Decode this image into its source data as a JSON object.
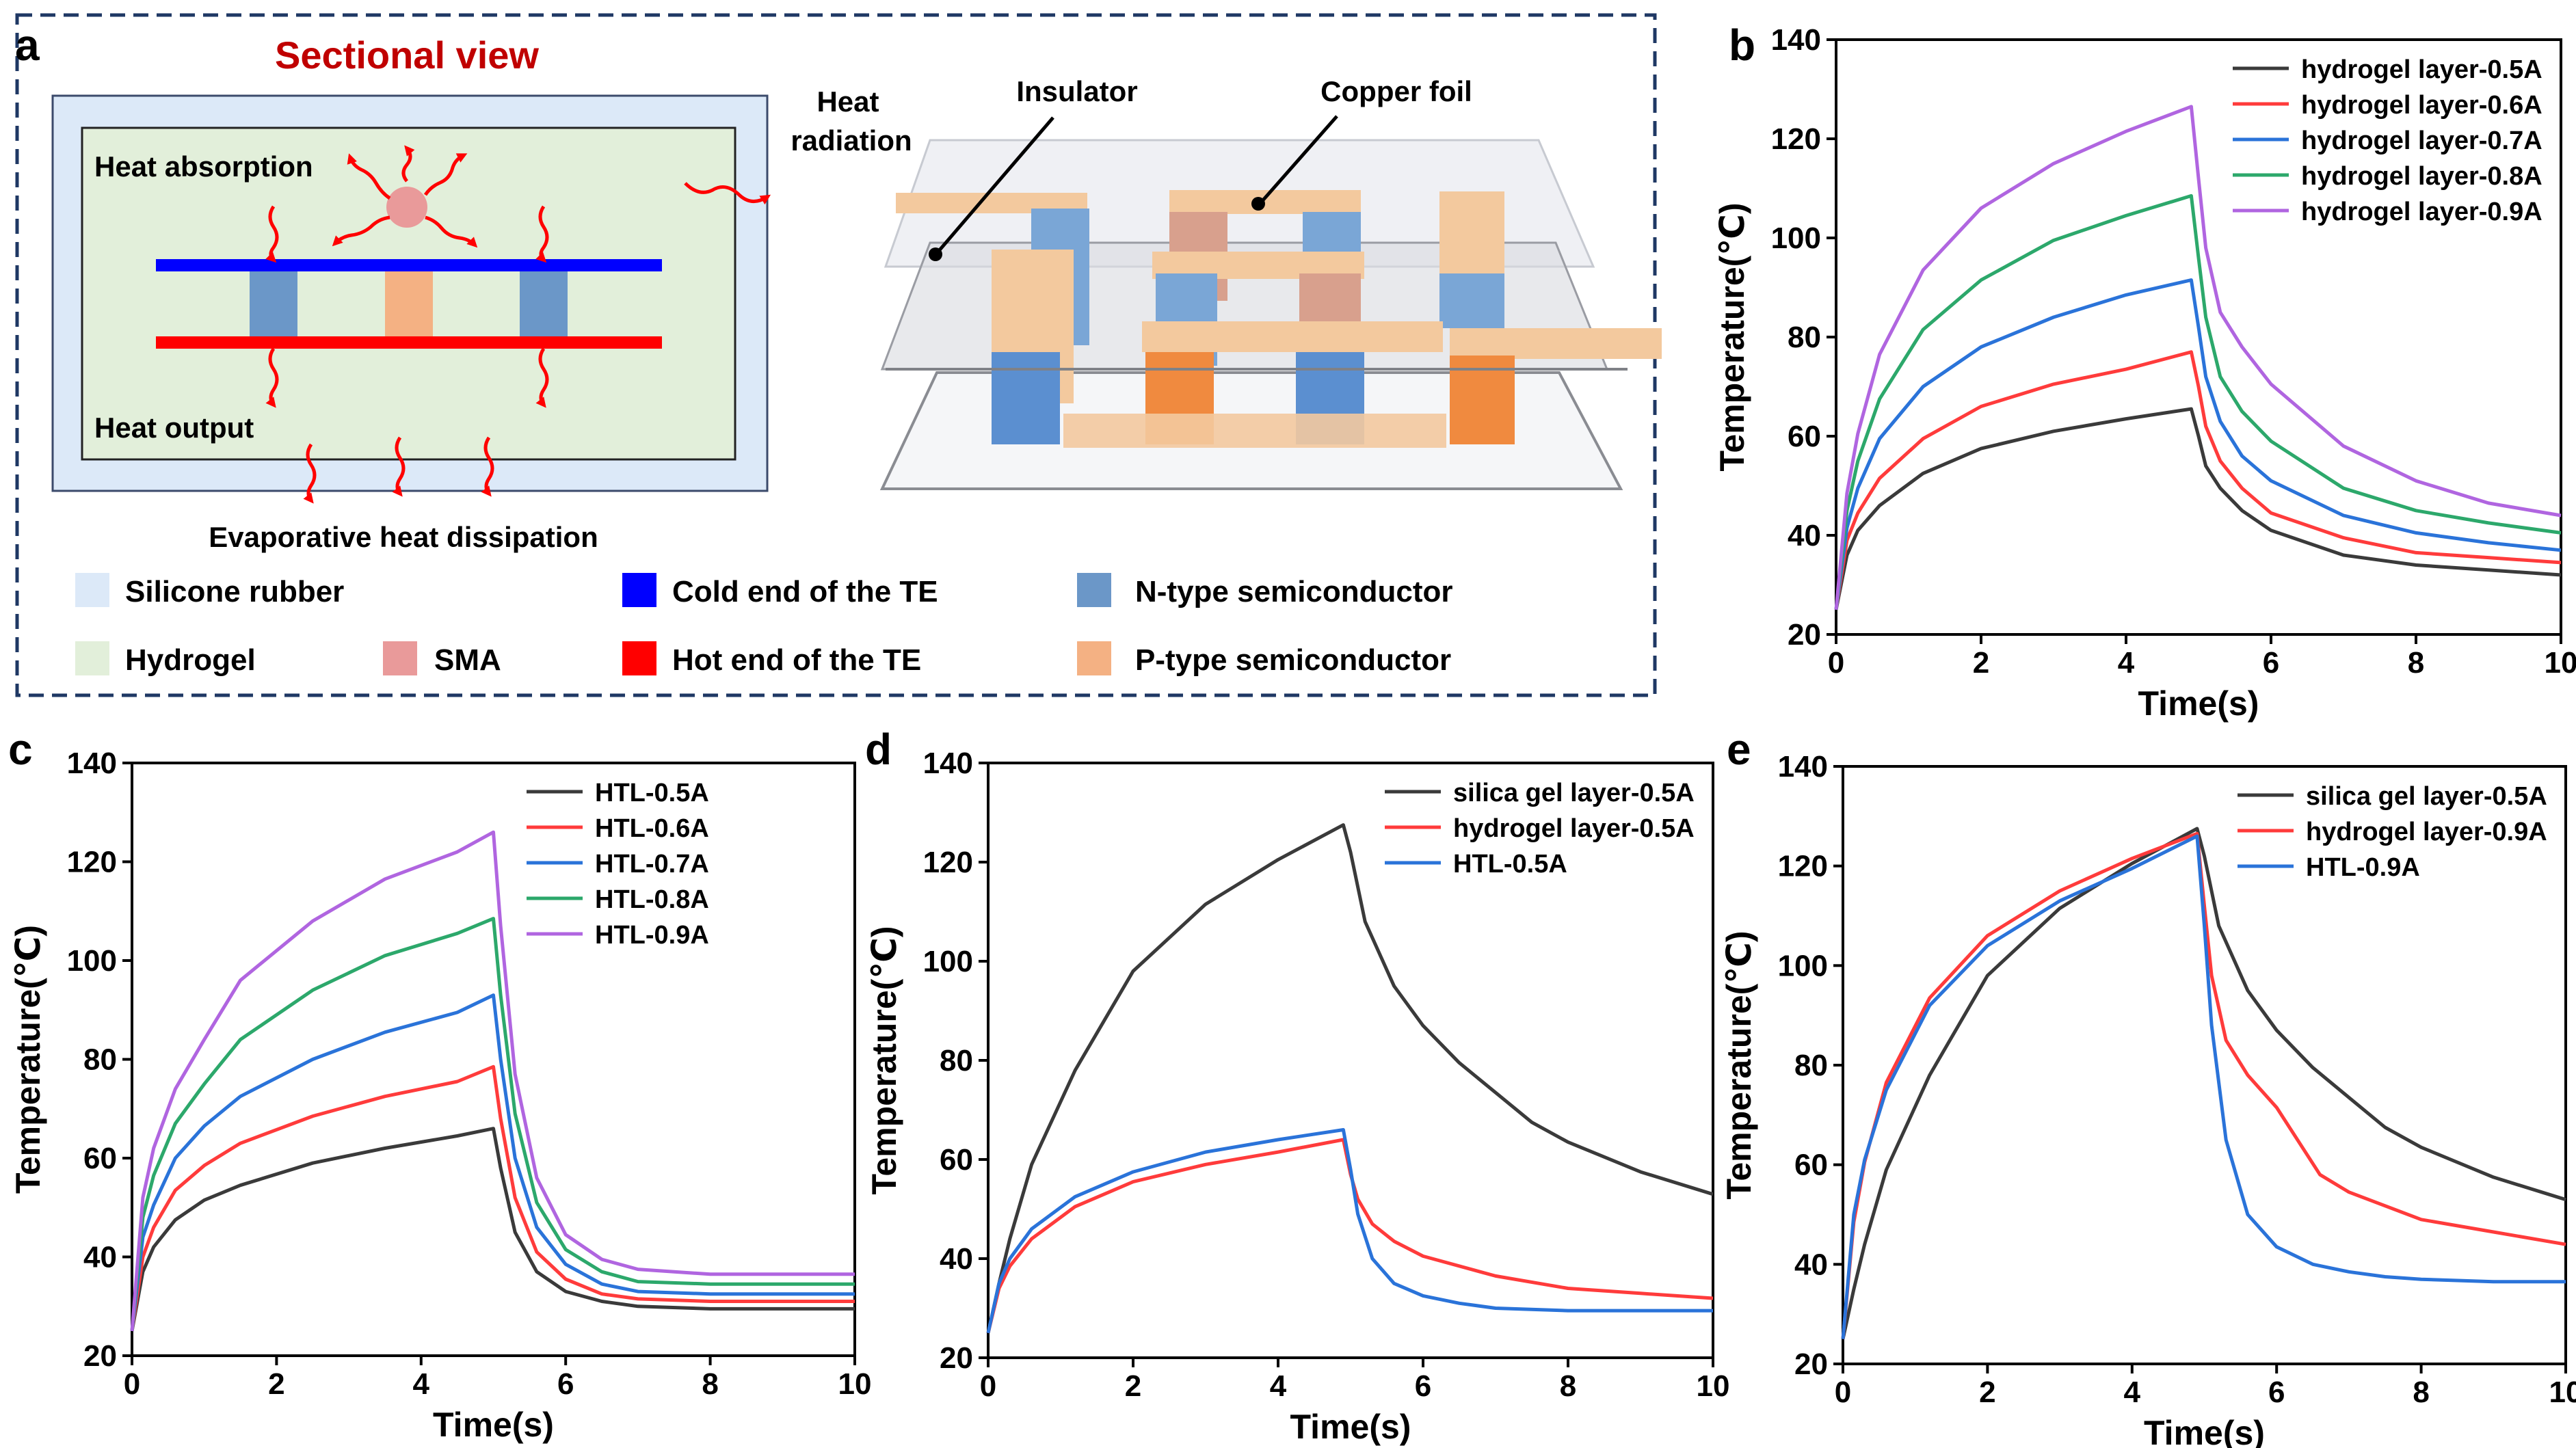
{
  "panel_a": {
    "letter": "a",
    "title": "Sectional view",
    "label_heat_absorption": "Heat absorption",
    "label_heat_output": "Heat output",
    "label_heat_radiation_1": "Heat",
    "label_heat_radiation_2": "radiation",
    "label_evaporative": "Evaporative heat dissipation",
    "label_insulator": "Insulator",
    "label_copper_foil": "Copper foil",
    "legend": [
      {
        "label": "Silicone rubber",
        "color": "#dce9f8"
      },
      {
        "label": "Hydrogel",
        "color": "#e2efda"
      },
      {
        "label": "SMA",
        "color": "#e99a9a"
      },
      {
        "label": "Cold end of the TE",
        "color": "#0000ff"
      },
      {
        "label": "Hot end of the TE",
        "color": "#ff0000"
      },
      {
        "label": "N-type semiconductor",
        "color": "#6b97c8"
      },
      {
        "label": "P-type semiconductor",
        "color": "#f4b183"
      }
    ]
  },
  "chart_data": [
    {
      "panel": "b",
      "type": "line",
      "xlabel": "Time(s)",
      "ylabel": "Temperature(℃)",
      "xlim": [
        0,
        10
      ],
      "ylim": [
        20,
        140
      ],
      "xticks": [
        "0",
        "2",
        "4",
        "6",
        "8",
        "10"
      ],
      "yticks": [
        "20",
        "40",
        "60",
        "80",
        "100",
        "120",
        "140"
      ],
      "legend_position": "top-right",
      "series": [
        {
          "name": "hydrogel layer-0.5A",
          "color": "#3a3a3a",
          "x": [
            0,
            0.15,
            0.3,
            0.6,
            1.2,
            2,
            3,
            4,
            4.9,
            5,
            5.1,
            5.3,
            5.6,
            6,
            7,
            8,
            9,
            10
          ],
          "y": [
            25,
            36,
            41,
            46,
            52.5,
            57.5,
            61,
            63.5,
            65.5,
            60,
            54,
            49.5,
            45,
            41,
            36,
            34,
            33,
            32
          ]
        },
        {
          "name": "hydrogel layer-0.6A",
          "color": "#ff3b3b",
          "x": [
            0,
            0.15,
            0.3,
            0.6,
            1.2,
            2,
            3,
            4,
            4.9,
            5,
            5.1,
            5.3,
            5.6,
            6,
            7,
            8,
            9,
            10
          ],
          "y": [
            25,
            39,
            44.5,
            51.5,
            59.5,
            66,
            70.5,
            73.5,
            77,
            70,
            62,
            55,
            49.5,
            44.5,
            39.5,
            36.5,
            35.5,
            34.5
          ]
        },
        {
          "name": "hydrogel layer-0.7A",
          "color": "#2a73d9",
          "x": [
            0,
            0.15,
            0.3,
            0.6,
            1.2,
            2,
            3,
            4,
            4.9,
            5,
            5.1,
            5.3,
            5.6,
            6,
            7,
            8,
            9,
            10
          ],
          "y": [
            25,
            41.5,
            49.5,
            59.5,
            70,
            78,
            84,
            88.5,
            91.5,
            82,
            72,
            63,
            56,
            51,
            44,
            40.5,
            38.5,
            37
          ]
        },
        {
          "name": "hydrogel layer-0.8A",
          "color": "#2ca86b",
          "x": [
            0,
            0.15,
            0.3,
            0.6,
            1.2,
            2,
            3,
            4,
            4.9,
            5,
            5.1,
            5.3,
            5.6,
            6,
            7,
            8,
            9,
            10
          ],
          "y": [
            25,
            45,
            55,
            67.5,
            81.5,
            91.5,
            99.5,
            104.5,
            108.5,
            96,
            84,
            72,
            65,
            59,
            49.5,
            45,
            42.5,
            40.5
          ]
        },
        {
          "name": "hydrogel layer-0.9A",
          "color": "#b065e0",
          "x": [
            0,
            0.15,
            0.3,
            0.6,
            1.2,
            2,
            3,
            4,
            4.9,
            5,
            5.1,
            5.3,
            5.6,
            6,
            7,
            8,
            9,
            10
          ],
          "y": [
            25,
            48.5,
            60.5,
            76.5,
            93.5,
            106,
            115,
            121.5,
            126.5,
            112,
            98,
            85,
            78,
            70.5,
            58,
            51,
            46.5,
            44
          ]
        }
      ]
    },
    {
      "panel": "c",
      "type": "line",
      "xlabel": "Time(s)",
      "ylabel": "Temperature(℃)",
      "xlim": [
        0,
        10
      ],
      "ylim": [
        20,
        140
      ],
      "xticks": [
        "0",
        "2",
        "4",
        "6",
        "8",
        "10"
      ],
      "yticks": [
        "20",
        "40",
        "60",
        "80",
        "100",
        "120",
        "140"
      ],
      "legend_position": "top-right",
      "series": [
        {
          "name": "HTL-0.5A",
          "color": "#3a3a3a",
          "x": [
            0,
            0.15,
            0.3,
            0.6,
            1,
            1.5,
            2.5,
            3.5,
            4.5,
            5,
            5.1,
            5.3,
            5.6,
            6,
            6.5,
            7,
            8,
            9,
            10
          ],
          "y": [
            25,
            37,
            42,
            47.5,
            51.5,
            54.5,
            59,
            62,
            64.5,
            66,
            58,
            45,
            37,
            33,
            31,
            30,
            29.5,
            29.5,
            29.5
          ]
        },
        {
          "name": "HTL-0.6A",
          "color": "#ff3b3b",
          "x": [
            0,
            0.15,
            0.3,
            0.6,
            1,
            1.5,
            2.5,
            3.5,
            4.5,
            5,
            5.1,
            5.3,
            5.6,
            6,
            6.5,
            7,
            8,
            9,
            10
          ],
          "y": [
            25,
            40,
            46,
            53.5,
            58.5,
            63,
            68.5,
            72.5,
            75.5,
            78.5,
            68,
            52,
            41,
            35.5,
            32.5,
            31.5,
            31,
            31,
            31
          ]
        },
        {
          "name": "HTL-0.7A",
          "color": "#2a73d9",
          "x": [
            0,
            0.15,
            0.3,
            0.6,
            1,
            1.5,
            2.5,
            3.5,
            4.5,
            5,
            5.1,
            5.3,
            5.6,
            6,
            6.5,
            7,
            8,
            9,
            10
          ],
          "y": [
            25,
            44,
            50.5,
            60,
            66.5,
            72.5,
            80,
            85.5,
            89.5,
            93,
            80,
            60,
            46,
            38.5,
            34.5,
            33,
            32.5,
            32.5,
            32.5
          ]
        },
        {
          "name": "HTL-0.8A",
          "color": "#2ca86b",
          "x": [
            0,
            0.15,
            0.3,
            0.6,
            1,
            1.5,
            2.5,
            3.5,
            4.5,
            5,
            5.1,
            5.3,
            5.6,
            6,
            6.5,
            7,
            8,
            9,
            10
          ],
          "y": [
            25,
            48,
            56.5,
            67,
            75,
            84,
            94,
            101,
            105.5,
            108.5,
            93,
            69,
            51,
            41.5,
            37,
            35,
            34.5,
            34.5,
            34.5
          ]
        },
        {
          "name": "HTL-0.9A",
          "color": "#b065e0",
          "x": [
            0,
            0.15,
            0.3,
            0.6,
            1,
            1.5,
            2.5,
            3.5,
            4.5,
            5,
            5.1,
            5.3,
            5.6,
            6,
            6.5,
            7,
            8,
            9,
            10
          ],
          "y": [
            25,
            52,
            62,
            74,
            84,
            96,
            108,
            116.5,
            122,
            126,
            107,
            77,
            56,
            44.5,
            39.5,
            37.5,
            36.5,
            36.5,
            36.5
          ]
        }
      ]
    },
    {
      "panel": "d",
      "type": "line",
      "xlabel": "Time(s)",
      "ylabel": "Temperature(℃)",
      "xlim": [
        0,
        10
      ],
      "ylim": [
        20,
        140
      ],
      "xticks": [
        "0",
        "2",
        "4",
        "6",
        "8",
        "10"
      ],
      "yticks": [
        "20",
        "40",
        "60",
        "80",
        "100",
        "120",
        "140"
      ],
      "legend_position": "top-right",
      "series": [
        {
          "name": "silica gel layer-0.5A",
          "color": "#3a3a3a",
          "x": [
            0,
            0.15,
            0.3,
            0.6,
            1.2,
            2,
            3,
            4,
            4.9,
            5,
            5.2,
            5.6,
            6,
            6.5,
            7,
            7.5,
            8,
            9,
            10
          ],
          "y": [
            25,
            35,
            44,
            59,
            78,
            98,
            111.5,
            120.5,
            127.5,
            122,
            108,
            95,
            87,
            79.5,
            73.5,
            67.5,
            63.5,
            57.5,
            53
          ]
        },
        {
          "name": "hydrogel layer-0.5A",
          "color": "#ff3b3b",
          "x": [
            0,
            0.15,
            0.3,
            0.6,
            1.2,
            2,
            3,
            4,
            4.9,
            5,
            5.1,
            5.3,
            5.6,
            6,
            7,
            8,
            9,
            10
          ],
          "y": [
            25,
            34,
            38.5,
            44,
            50.5,
            55.5,
            59,
            61.5,
            64,
            57,
            52,
            47,
            43.5,
            40.5,
            36.5,
            34,
            33,
            32
          ]
        },
        {
          "name": "HTL-0.5A",
          "color": "#2a73d9",
          "x": [
            0,
            0.15,
            0.3,
            0.6,
            1.2,
            2,
            3,
            4,
            4.9,
            5,
            5.1,
            5.3,
            5.6,
            6,
            6.5,
            7,
            8,
            9,
            10
          ],
          "y": [
            25,
            35,
            40,
            46,
            52.5,
            57.5,
            61.5,
            64,
            66,
            58,
            49,
            40,
            35,
            32.5,
            31,
            30,
            29.5,
            29.5,
            29.5
          ]
        }
      ]
    },
    {
      "panel": "e",
      "type": "line",
      "xlabel": "Time(s)",
      "ylabel": "Temperature(℃)",
      "xlim": [
        0,
        10
      ],
      "ylim": [
        20,
        140
      ],
      "xticks": [
        "0",
        "2",
        "4",
        "6",
        "8",
        "10"
      ],
      "yticks": [
        "20",
        "40",
        "60",
        "80",
        "100",
        "120",
        "140"
      ],
      "legend_position": "top-right",
      "series": [
        {
          "name": "silica gel layer-0.5A",
          "color": "#3a3a3a",
          "x": [
            0,
            0.15,
            0.3,
            0.6,
            1.2,
            2,
            3,
            4,
            4.9,
            5,
            5.2,
            5.6,
            6,
            6.5,
            7,
            7.5,
            8,
            9,
            10
          ],
          "y": [
            25,
            35,
            44,
            59,
            78,
            98,
            111.5,
            120.5,
            127.5,
            122,
            108,
            95,
            87,
            79.5,
            73.5,
            67.5,
            63.5,
            57.5,
            53
          ]
        },
        {
          "name": "hydrogel layer-0.9A",
          "color": "#ff3b3b",
          "x": [
            0,
            0.15,
            0.3,
            0.6,
            1.2,
            2,
            3,
            4,
            4.9,
            5,
            5.1,
            5.3,
            5.6,
            6,
            6.6,
            7,
            8,
            9,
            10
          ],
          "y": [
            25,
            48.5,
            60.5,
            76.5,
            93.5,
            106,
            115,
            121.5,
            126.5,
            112,
            98,
            85,
            78,
            71.5,
            58,
            54.5,
            49,
            46.5,
            44
          ]
        },
        {
          "name": "HTL-0.9A",
          "color": "#2a73d9",
          "x": [
            0,
            0.15,
            0.3,
            0.6,
            1.2,
            2,
            3,
            4,
            4.9,
            5,
            5.1,
            5.3,
            5.6,
            6,
            6.5,
            7,
            7.5,
            8,
            9,
            10
          ],
          "y": [
            25,
            50,
            61,
            75,
            92,
            104,
            113,
            119.5,
            126,
            108,
            88,
            65,
            50,
            43.5,
            40,
            38.5,
            37.5,
            37,
            36.5,
            36.5
          ]
        }
      ]
    }
  ]
}
